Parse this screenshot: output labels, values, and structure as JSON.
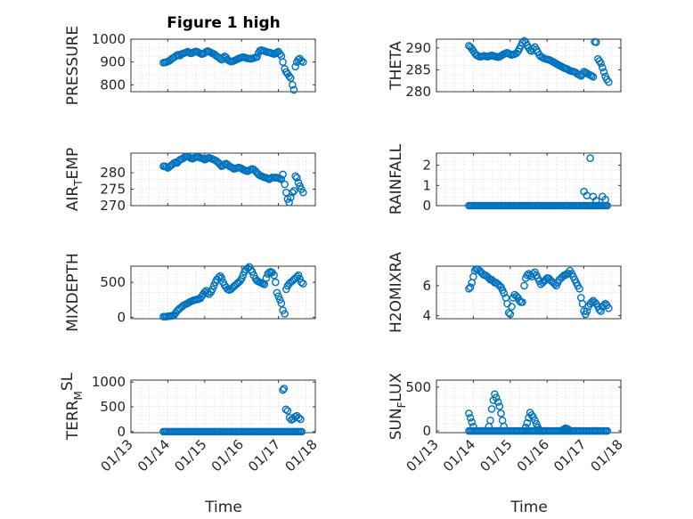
{
  "title": "Figure 1 high",
  "marker_color": "#0072BD",
  "chart_data": [
    {
      "type": "scatter",
      "ylabel": "PRESSURE",
      "ylim": [
        770,
        1000
      ],
      "yticks": [
        {
          "v": 800,
          "l": "800"
        },
        {
          "v": 900,
          "l": "900"
        },
        {
          "v": 1000,
          "l": "1000"
        }
      ],
      "x": [
        13.88,
        13.92,
        13.96,
        14.0,
        14.04,
        14.08,
        14.12,
        14.17,
        14.21,
        14.25,
        14.29,
        14.33,
        14.38,
        14.42,
        14.46,
        14.5,
        14.54,
        14.58,
        14.62,
        14.67,
        14.71,
        14.75,
        14.79,
        14.83,
        14.88,
        14.92,
        14.96,
        15.0,
        15.04,
        15.08,
        15.12,
        15.17,
        15.21,
        15.25,
        15.29,
        15.33,
        15.38,
        15.42,
        15.46,
        15.5,
        15.54,
        15.58,
        15.62,
        15.67,
        15.71,
        15.75,
        15.79,
        15.83,
        15.88,
        15.92,
        15.96,
        16.0,
        16.04,
        16.08,
        16.12,
        16.17,
        16.21,
        16.25,
        16.29,
        16.33,
        16.38,
        16.42,
        16.46,
        16.5,
        16.54,
        16.58,
        16.62,
        16.67,
        16.71,
        16.75,
        16.79,
        16.83,
        16.88,
        16.92,
        16.96,
        17.0,
        17.04,
        17.08,
        17.12,
        17.17,
        17.21,
        17.25,
        17.29,
        17.33,
        17.38,
        17.42,
        17.46,
        17.5,
        17.54,
        17.58,
        17.62,
        17.67
      ],
      "y": [
        897,
        898,
        900,
        902,
        905,
        910,
        916,
        920,
        925,
        930,
        932,
        928,
        935,
        938,
        940,
        942,
        945,
        942,
        938,
        940,
        944,
        946,
        945,
        942,
        938,
        935,
        937,
        940,
        945,
        948,
        945,
        942,
        938,
        935,
        930,
        925,
        920,
        915,
        910,
        918,
        925,
        920,
        910,
        905,
        902,
        903,
        905,
        908,
        912,
        915,
        918,
        920,
        922,
        920,
        918,
        916,
        915,
        914,
        915,
        918,
        920,
        922,
        940,
        950,
        952,
        950,
        948,
        945,
        943,
        942,
        940,
        938,
        935,
        938,
        942,
        945,
        935,
        926,
        900,
        870,
        856,
        848,
        838,
        830,
        800,
        778,
        880,
        900,
        910,
        915,
        905,
        900
      ]
    },
    {
      "type": "scatter",
      "ylabel": "THETA",
      "ylim": [
        280,
        292
      ],
      "yticks": [
        {
          "v": 280,
          "l": "280"
        },
        {
          "v": 285,
          "l": "285"
        },
        {
          "v": 290,
          "l": "290"
        }
      ],
      "x": [
        13.88,
        13.92,
        13.96,
        14.0,
        14.04,
        14.08,
        14.12,
        14.17,
        14.21,
        14.25,
        14.29,
        14.33,
        14.38,
        14.42,
        14.46,
        14.5,
        14.54,
        14.58,
        14.62,
        14.67,
        14.71,
        14.75,
        14.79,
        14.83,
        14.88,
        14.92,
        14.96,
        15.0,
        15.04,
        15.08,
        15.12,
        15.17,
        15.21,
        15.25,
        15.29,
        15.33,
        15.38,
        15.42,
        15.46,
        15.5,
        15.54,
        15.58,
        15.62,
        15.67,
        15.71,
        15.75,
        15.79,
        15.83,
        15.88,
        15.92,
        15.96,
        16.0,
        16.04,
        16.08,
        16.12,
        16.17,
        16.21,
        16.25,
        16.29,
        16.33,
        16.38,
        16.42,
        16.46,
        16.5,
        16.54,
        16.58,
        16.62,
        16.67,
        16.71,
        16.75,
        16.79,
        16.83,
        16.88,
        16.92,
        16.96,
        17.0,
        17.04,
        17.08,
        17.12,
        17.17,
        17.21,
        17.25,
        17.29,
        17.33,
        17.38,
        17.42,
        17.46,
        17.5,
        17.54,
        17.58,
        17.62,
        17.67
      ],
      "y": [
        290.5,
        290.2,
        289.8,
        289.3,
        288.8,
        288.4,
        288.2,
        288.0,
        288.0,
        288.1,
        288.2,
        288.1,
        288.0,
        288.1,
        288.2,
        288.3,
        288.2,
        288.1,
        288.0,
        287.9,
        288.0,
        288.2,
        288.4,
        288.6,
        288.8,
        288.9,
        288.7,
        288.5,
        288.4,
        288.5,
        288.6,
        288.8,
        289.2,
        289.8,
        290.5,
        291.2,
        291.6,
        291.2,
        290.6,
        290.0,
        289.5,
        289.3,
        289.8,
        290.2,
        289.6,
        289.0,
        288.4,
        288.0,
        287.8,
        287.6,
        287.5,
        287.4,
        287.3,
        287.2,
        287.0,
        286.8,
        286.6,
        286.4,
        286.2,
        286.0,
        285.8,
        285.6,
        285.4,
        285.3,
        285.2,
        285.0,
        284.8,
        284.7,
        284.6,
        284.5,
        284.3,
        284.0,
        283.8,
        283.6,
        284.0,
        284.6,
        284.4,
        284.2,
        284.0,
        283.8,
        283.6,
        283.4,
        291.4,
        291.3,
        287.5,
        287.0,
        286.5,
        285.5,
        284.5,
        283.5,
        282.8,
        282.2
      ]
    },
    {
      "type": "scatter",
      "ylabel_main": "AIR",
      "ylabel_sub": "T",
      "ylabel_tail": "EMP",
      "ylim": [
        270,
        286
      ],
      "yticks": [
        {
          "v": 270,
          "l": "270"
        },
        {
          "v": 275,
          "l": "275"
        },
        {
          "v": 280,
          "l": "280"
        }
      ],
      "x": [
        13.88,
        13.92,
        13.96,
        14.0,
        14.04,
        14.08,
        14.12,
        14.17,
        14.21,
        14.25,
        14.29,
        14.33,
        14.38,
        14.42,
        14.46,
        14.5,
        14.54,
        14.58,
        14.62,
        14.67,
        14.71,
        14.75,
        14.79,
        14.83,
        14.88,
        14.92,
        14.96,
        15.0,
        15.04,
        15.08,
        15.12,
        15.17,
        15.21,
        15.25,
        15.29,
        15.33,
        15.38,
        15.42,
        15.46,
        15.5,
        15.54,
        15.58,
        15.62,
        15.67,
        15.71,
        15.75,
        15.79,
        15.83,
        15.88,
        15.92,
        15.96,
        16.0,
        16.04,
        16.08,
        16.12,
        16.17,
        16.21,
        16.25,
        16.29,
        16.33,
        16.38,
        16.42,
        16.46,
        16.5,
        16.54,
        16.58,
        16.62,
        16.67,
        16.71,
        16.75,
        16.79,
        16.83,
        16.88,
        16.92,
        16.96,
        17.0,
        17.04,
        17.08,
        17.12,
        17.17,
        17.21,
        17.25,
        17.29,
        17.33,
        17.38,
        17.42,
        17.46,
        17.5,
        17.54,
        17.58,
        17.62,
        17.67
      ],
      "y": [
        282.0,
        282.0,
        281.8,
        281.5,
        281.8,
        282.2,
        282.5,
        283.0,
        283.2,
        283.0,
        283.5,
        284.0,
        284.2,
        284.5,
        284.8,
        285.0,
        285.0,
        284.8,
        284.5,
        284.3,
        284.5,
        284.8,
        285.0,
        284.8,
        284.6,
        284.5,
        284.3,
        284.0,
        284.2,
        284.5,
        284.6,
        284.4,
        284.2,
        284.0,
        283.8,
        283.5,
        283.0,
        282.5,
        282.0,
        282.2,
        282.6,
        282.8,
        282.5,
        282.0,
        281.8,
        281.5,
        281.2,
        281.3,
        281.5,
        281.6,
        281.5,
        281.3,
        281.0,
        280.8,
        280.6,
        280.5,
        280.8,
        281.0,
        281.2,
        281.0,
        280.5,
        280.0,
        279.5,
        279.2,
        279.0,
        278.8,
        278.6,
        278.5,
        278.3,
        278.0,
        278.3,
        278.6,
        278.5,
        278.6,
        278.5,
        278.4,
        278.2,
        278.0,
        279.5,
        276.5,
        274.0,
        272.0,
        271.0,
        272.5,
        274.0,
        274.5,
        279.0,
        278.5,
        277.0,
        276.0,
        275.0,
        274.0
      ]
    },
    {
      "type": "scatter",
      "ylabel": "RAINFALL",
      "ylim": [
        0,
        2.6
      ],
      "yticks": [
        {
          "v": 0,
          "l": "0"
        },
        {
          "v": 1,
          "l": "1"
        },
        {
          "v": 2,
          "l": "2"
        }
      ],
      "x_zero_start": 13.88,
      "x_zero_end": 17.67,
      "x_zero_step": 0.0417,
      "x": [
        17.0,
        17.08,
        17.17,
        17.25,
        17.33,
        17.5,
        17.58
      ],
      "y": [
        0.7,
        0.5,
        2.35,
        0.45,
        0.25,
        0.45,
        0.3
      ]
    },
    {
      "type": "scatter",
      "ylabel": "MIXDEPTH",
      "ylim": [
        -20,
        730
      ],
      "yticks": [
        {
          "v": 0,
          "l": "0"
        },
        {
          "v": 500,
          "l": "500"
        }
      ],
      "x": [
        13.88,
        13.92,
        13.96,
        14.0,
        14.04,
        14.08,
        14.12,
        14.17,
        14.21,
        14.25,
        14.29,
        14.33,
        14.38,
        14.42,
        14.46,
        14.5,
        14.54,
        14.58,
        14.62,
        14.67,
        14.71,
        14.75,
        14.79,
        14.83,
        14.88,
        14.92,
        14.96,
        15.0,
        15.04,
        15.08,
        15.12,
        15.17,
        15.21,
        15.25,
        15.29,
        15.33,
        15.38,
        15.42,
        15.46,
        15.5,
        15.54,
        15.58,
        15.62,
        15.67,
        15.71,
        15.75,
        15.79,
        15.83,
        15.88,
        15.92,
        15.96,
        16.0,
        16.04,
        16.08,
        16.12,
        16.17,
        16.21,
        16.25,
        16.29,
        16.33,
        16.38,
        16.42,
        16.46,
        16.5,
        16.54,
        16.58,
        16.62,
        16.67,
        16.71,
        16.75,
        16.79,
        16.83,
        16.88,
        16.92,
        16.96,
        17.0,
        17.04,
        17.08,
        17.12,
        17.17,
        17.21,
        17.25,
        17.29,
        17.33,
        17.38,
        17.42,
        17.46,
        17.5,
        17.54,
        17.58,
        17.62,
        17.67
      ],
      "y": [
        10,
        10,
        10,
        15,
        15,
        20,
        20,
        30,
        60,
        90,
        110,
        130,
        150,
        170,
        180,
        190,
        200,
        215,
        225,
        235,
        245,
        250,
        255,
        260,
        270,
        300,
        330,
        360,
        380,
        350,
        330,
        360,
        400,
        450,
        500,
        540,
        570,
        590,
        560,
        500,
        460,
        430,
        400,
        390,
        400,
        420,
        440,
        460,
        480,
        500,
        520,
        550,
        600,
        650,
        680,
        700,
        720,
        680,
        650,
        600,
        550,
        520,
        510,
        500,
        490,
        480,
        470,
        560,
        620,
        640,
        650,
        640,
        600,
        500,
        350,
        300,
        250,
        200,
        100,
        50,
        400,
        450,
        480,
        500,
        520,
        540,
        560,
        580,
        600,
        550,
        500,
        480
      ]
    },
    {
      "type": "scatter",
      "ylabel": "H2OMIXRA",
      "ylim": [
        3.8,
        7.3
      ],
      "yticks": [
        {
          "v": 4,
          "l": "4"
        },
        {
          "v": 6,
          "l": "6"
        }
      ],
      "x": [
        13.88,
        13.92,
        13.96,
        14.0,
        14.04,
        14.08,
        14.12,
        14.17,
        14.21,
        14.25,
        14.29,
        14.33,
        14.38,
        14.42,
        14.46,
        14.5,
        14.54,
        14.58,
        14.62,
        14.67,
        14.71,
        14.75,
        14.79,
        14.83,
        14.88,
        14.92,
        14.96,
        15.0,
        15.04,
        15.08,
        15.12,
        15.17,
        15.21,
        15.25,
        15.29,
        15.33,
        15.38,
        15.42,
        15.46,
        15.5,
        15.54,
        15.58,
        15.62,
        15.67,
        15.71,
        15.75,
        15.79,
        15.83,
        15.88,
        15.92,
        15.96,
        16.0,
        16.04,
        16.08,
        16.12,
        16.17,
        16.21,
        16.25,
        16.29,
        16.33,
        16.38,
        16.42,
        16.46,
        16.5,
        16.54,
        16.58,
        16.62,
        16.67,
        16.71,
        16.75,
        16.79,
        16.83,
        16.88,
        16.92,
        16.96,
        17.0,
        17.04,
        17.08,
        17.12,
        17.17,
        17.21,
        17.25,
        17.29,
        17.33,
        17.38,
        17.42,
        17.46,
        17.5,
        17.54,
        17.58,
        17.62,
        17.67
      ],
      "y": [
        5.8,
        5.9,
        6.2,
        6.6,
        7.0,
        7.1,
        7.1,
        7.0,
        6.9,
        6.8,
        6.7,
        6.7,
        6.6,
        6.5,
        6.4,
        6.4,
        6.3,
        6.2,
        6.2,
        6.1,
        6.0,
        5.9,
        5.7,
        5.5,
        5.2,
        4.8,
        4.2,
        4.1,
        4.6,
        5.2,
        5.4,
        5.3,
        5.2,
        5.0,
        4.9,
        4.9,
        6.0,
        6.5,
        6.7,
        6.8,
        6.7,
        6.6,
        6.8,
        6.9,
        6.7,
        6.5,
        6.3,
        6.1,
        6.2,
        6.3,
        6.4,
        6.5,
        6.5,
        6.4,
        6.3,
        6.2,
        6.1,
        6.0,
        6.2,
        6.4,
        6.5,
        6.6,
        6.7,
        6.7,
        6.8,
        6.8,
        7.0,
        6.8,
        6.6,
        6.4,
        6.2,
        6.0,
        5.8,
        5.2,
        4.8,
        4.3,
        4.1,
        4.3,
        4.6,
        4.8,
        4.9,
        5.0,
        4.9,
        4.8,
        4.6,
        4.4,
        4.3,
        4.6,
        4.7,
        4.8,
        4.7,
        4.5
      ]
    },
    {
      "type": "scatter",
      "ylabel_main": "TERR",
      "ylabel_sub": "M",
      "ylabel_sup": "SL",
      "ylim": [
        -20,
        1040
      ],
      "yticks": [
        {
          "v": 0,
          "l": "0"
        },
        {
          "v": 500,
          "l": "500"
        },
        {
          "v": 1000,
          "l": "1000"
        }
      ],
      "x_zero_start": 13.88,
      "x_zero_end": 17.67,
      "x_zero_step": 0.0417,
      "x": [
        17.12,
        17.15,
        17.2,
        17.25,
        17.3,
        17.35,
        17.4,
        17.45,
        17.5,
        17.55,
        17.6
      ],
      "y": [
        840,
        870,
        450,
        420,
        280,
        240,
        260,
        300,
        320,
        280,
        250
      ]
    },
    {
      "type": "scatter",
      "ylabel_main": "SUN",
      "ylabel_sub": "F",
      "ylabel_tail": "LUX",
      "ylim": [
        -20,
        580
      ],
      "yticks": [
        {
          "v": 0,
          "l": "0"
        },
        {
          "v": 500,
          "l": "500"
        }
      ],
      "x_zero_start": 13.88,
      "x_zero_end": 17.67,
      "x_zero_step": 0.0417,
      "x": [
        13.88,
        13.92,
        13.96,
        14.0,
        14.42,
        14.46,
        14.5,
        14.54,
        14.58,
        14.62,
        14.67,
        14.71,
        14.75,
        14.79,
        14.83,
        15.42,
        15.46,
        15.5,
        15.54,
        15.58,
        15.62,
        15.67,
        15.71,
        15.75,
        15.79,
        16.42,
        16.46,
        16.5,
        16.54,
        16.58
      ],
      "y": [
        200,
        150,
        100,
        50,
        50,
        120,
        250,
        350,
        420,
        380,
        330,
        280,
        200,
        120,
        50,
        40,
        90,
        150,
        210,
        180,
        160,
        120,
        80,
        40,
        10,
        10,
        20,
        30,
        25,
        15
      ]
    }
  ],
  "xticks": [
    {
      "v": 13,
      "l": "01/13"
    },
    {
      "v": 14,
      "l": "01/14"
    },
    {
      "v": 15,
      "l": "01/15"
    },
    {
      "v": 16,
      "l": "01/16"
    },
    {
      "v": 17,
      "l": "01/17"
    },
    {
      "v": 18,
      "l": "01/18"
    }
  ],
  "xlim": [
    13,
    18
  ],
  "xlabel": "Time"
}
